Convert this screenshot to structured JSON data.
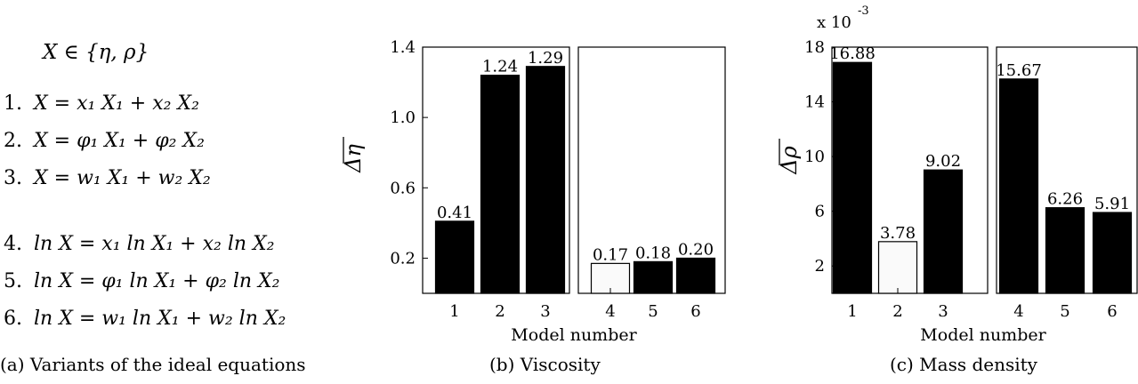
{
  "equations": {
    "header": "X ∈ {η, ρ}",
    "items": [
      {
        "num": "1.",
        "expr": "X = x₁ X₁ + x₂ X₂"
      },
      {
        "num": "2.",
        "expr": "X = φ₁ X₁ + φ₂ X₂"
      },
      {
        "num": "3.",
        "expr": "X = w₁ X₁ + w₂ X₂"
      },
      {
        "num": "4.",
        "expr": "ln X = x₁ ln X₁ + x₂ ln X₂"
      },
      {
        "num": "5.",
        "expr": "ln X = φ₁ ln X₁ + φ₂ ln X₂"
      },
      {
        "num": "6.",
        "expr": "ln X = w₁ ln X₁ + w₂ ln X₂"
      }
    ]
  },
  "captions": {
    "a": "(a) Variants of the ideal equations",
    "b": "(b) Viscosity",
    "c": "(c) Mass density"
  },
  "colors": {
    "filled": "#000000",
    "hollow": "#fafafa"
  },
  "chart_data": [
    {
      "type": "bar",
      "xlabel": "Model number",
      "ylabel": "Δη",
      "ylim": [
        0,
        1.4
      ],
      "yticks": [
        0.2,
        0.6,
        1.0,
        1.4
      ],
      "ytick_labels": [
        "0.2",
        "0.6",
        "1.0",
        "1.4"
      ],
      "categories": [
        "1",
        "2",
        "3",
        "4",
        "5",
        "6"
      ],
      "values": [
        0.41,
        1.24,
        1.29,
        0.17,
        0.18,
        0.2
      ],
      "value_labels": [
        "0.41",
        "1.24",
        "1.29",
        "0.17",
        "0.18",
        "0.20"
      ],
      "hollow": [
        false,
        false,
        false,
        true,
        false,
        false
      ],
      "panels": [
        [
          0,
          1,
          2
        ],
        [
          3,
          4,
          5
        ]
      ]
    },
    {
      "type": "bar",
      "xlabel": "Model number",
      "ylabel": "Δρ",
      "scale_note": "x 10",
      "scale_exp": "-3",
      "ylim": [
        0,
        18
      ],
      "yticks": [
        2,
        6,
        10,
        14,
        18
      ],
      "ytick_labels": [
        "2",
        "6",
        "10",
        "14",
        "18"
      ],
      "categories": [
        "1",
        "2",
        "3",
        "4",
        "5",
        "6"
      ],
      "values": [
        16.88,
        3.78,
        9.02,
        15.67,
        6.26,
        5.91
      ],
      "value_labels": [
        "16.88",
        "3.78",
        "9.02",
        "15.67",
        "6.26",
        "5.91"
      ],
      "hollow": [
        false,
        true,
        false,
        false,
        false,
        false
      ],
      "panels": [
        [
          0,
          1,
          2
        ],
        [
          3,
          4,
          5
        ]
      ]
    }
  ]
}
